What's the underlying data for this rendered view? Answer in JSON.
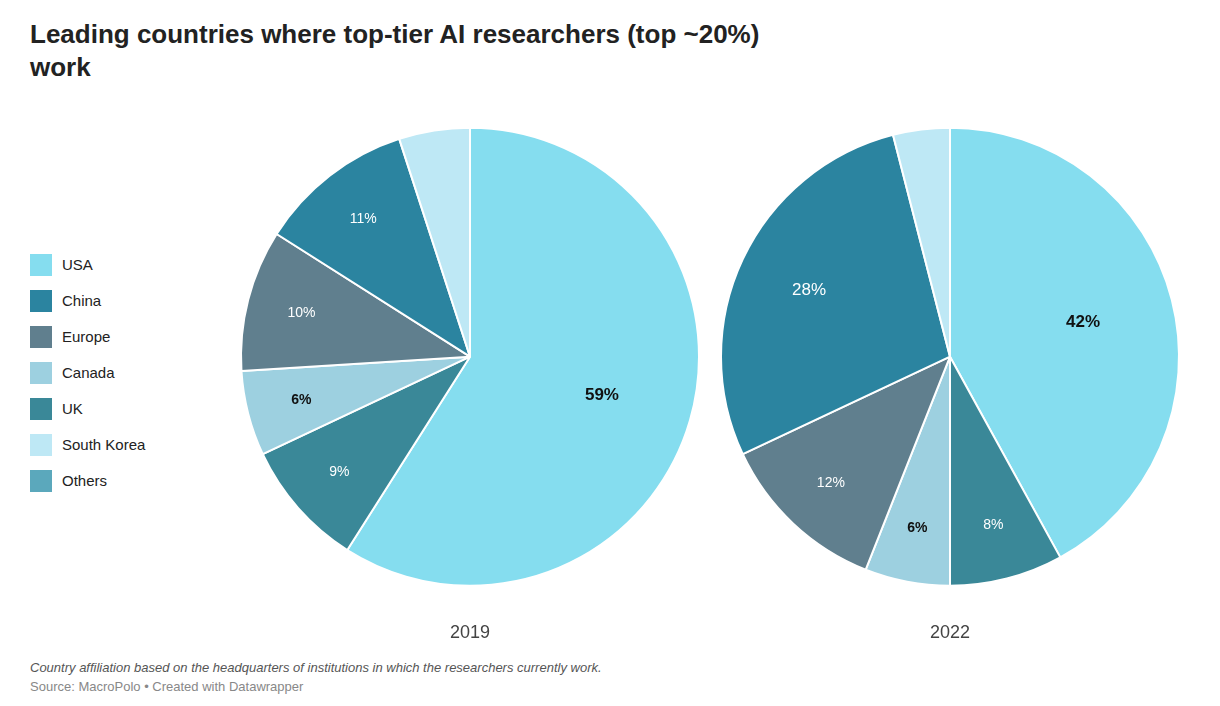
{
  "title": "Leading countries where top-tier AI researchers (top ~20%)\nwork",
  "subtitle": "Country affiliation based on the headquarters of institutions in which the researchers currently work.",
  "source": "Source: MacroPolo • Created with Datawrapper",
  "legend": "left",
  "legend_items": [
    {
      "name": "USA",
      "color": "#85DDEF"
    },
    {
      "name": "China",
      "color": "#2B84A0"
    },
    {
      "name": "Europe",
      "color": "#607F8E"
    },
    {
      "name": "Canada",
      "color": "#9DD0E0"
    },
    {
      "name": "UK",
      "color": "#3A8898"
    },
    {
      "name": "South Korea",
      "color": "#BEE8F5"
    },
    {
      "name": "Others",
      "color": "#5BA8BC"
    }
  ],
  "chart_data": [
    {
      "type": "pie",
      "title": "2019",
      "categories": [
        "USA",
        "UK",
        "Canada",
        "Europe",
        "China",
        "South Korea"
      ],
      "values": [
        59,
        9,
        6,
        10,
        11,
        5
      ],
      "value_labels": [
        "59%",
        "9%",
        "6%",
        "10%",
        "11%",
        null
      ],
      "colors": [
        "#85DDEF",
        "#3A8898",
        "#9DD0E0",
        "#607F8E",
        "#2B84A0",
        "#BEE8F5"
      ],
      "data_labels": true
    },
    {
      "type": "pie",
      "title": "2022",
      "categories": [
        "USA",
        "UK",
        "Canada",
        "Europe",
        "China",
        "South Korea"
      ],
      "values": [
        42,
        8,
        6,
        12,
        28,
        4
      ],
      "value_labels": [
        "42%",
        "8%",
        "6%",
        "12%",
        "28%",
        null
      ],
      "colors": [
        "#85DDEF",
        "#3A8898",
        "#9DD0E0",
        "#607F8E",
        "#2B84A0",
        "#BEE8F5"
      ],
      "data_labels": true
    }
  ]
}
